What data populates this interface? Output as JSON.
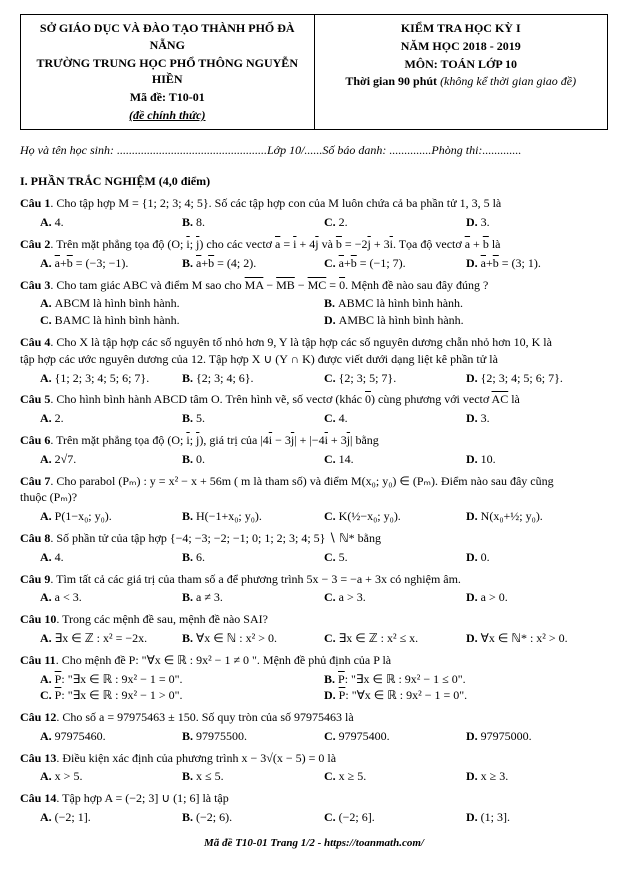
{
  "header": {
    "left": {
      "l1": "SỞ GIÁO DỤC VÀ ĐÀO TẠO THÀNH PHỐ ĐÀ NẴNG",
      "l2": "TRƯỜNG TRUNG HỌC PHỔ THÔNG NGUYỄN HIỀN",
      "code_label": "Mã đề: ",
      "code": "T10-01",
      "official": "(đề chính thức)"
    },
    "right": {
      "r1": "KIỂM TRA HỌC KỲ I",
      "r2": "NĂM HỌC 2018 - 2019",
      "r3": "MÔN: TOÁN LỚP 10",
      "time_label": "Thời gian 90 phút ",
      "time_note": "(không kể thời gian giao đề)"
    }
  },
  "fill": {
    "name_label": "Họ và tên học sinh: ",
    "class_label": "Lớp 10/",
    "id_label": "Số báo danh: ",
    "room_label": "Phòng thi:"
  },
  "section1": "I. PHẦN TRẮC NGHIỆM (4,0 điểm)",
  "q1": {
    "text": ". Cho tập hợp M = {1; 2; 3; 4; 5}. Số các tập hợp con của M luôn chứa cả ba phần tử 1, 3, 5 là",
    "a": "4.",
    "b": "8.",
    "c": "2.",
    "d": "3."
  },
  "q2": {
    "text_before": ". Trên mặt phẳng tọa độ (O; ",
    "text_mid": ") cho các vectơ ",
    "eq1": " và ",
    "eq2": ". Tọa độ vectơ ",
    "eq3": " là",
    "a": " = (−3; −1).",
    "b": " = (4; 2).",
    "c": " = (−1; 7).",
    "d": " = (3; 1)."
  },
  "q3": {
    "text": ". Cho tam giác ABC và điểm M sao cho ",
    "eq": " = ",
    "after": ". Mệnh đề nào sau đây đúng ?",
    "a": "ABCM là hình bình hành.",
    "b": "ABMC là hình bình hành.",
    "c": "BAMC là hình bình hành.",
    "d": "AMBC là hình bình hành."
  },
  "q4": {
    "l1": ". Cho X là tập hợp các số nguyên tố nhỏ hơn 9, Y là tập hợp các số nguyên dương chẵn nhỏ hơn 10, K là",
    "l2": "tập hợp các ước nguyên dương của 12. Tập hợp X ∪ (Y ∩ K) được viết dưới dạng liệt kê phần tử là",
    "a": "{1; 2; 3; 4; 5; 6; 7}.",
    "b": "{2; 3; 4; 6}.",
    "c": "{2; 3; 5; 7}.",
    "d": "{2; 3; 4; 5; 6; 7}."
  },
  "q5": {
    "text": ". Cho hình bình hành ABCD tâm O. Trên hình vẽ, số vectơ (khác ",
    "after": ") cùng phương với vectơ ",
    "after2": " là",
    "a": "2.",
    "b": "5.",
    "c": "4.",
    "d": "3."
  },
  "q6": {
    "text": ". Trên mặt phẳng tọa độ (O; ",
    "mid": "), giá trị của ",
    "after": " bằng",
    "a": "2√7.",
    "b": "0.",
    "c": "14.",
    "d": "10."
  },
  "q7": {
    "l1": ". Cho parabol (Pₘ) : y = x² − x + 56m ( m là tham số) và điểm M(x₀; y₀) ∈ (Pₘ). Điểm nào sau đây cũng",
    "l2": "thuộc (Pₘ)?",
    "a": "P(1−x₀; y₀).",
    "b": "H(−1+x₀; y₀).",
    "c_pre": "K(",
    "c_frac": "½",
    "c_post": "−x₀; y₀).",
    "d_pre": "N(x₀+",
    "d_frac": "½",
    "d_post": "; y₀)."
  },
  "q8": {
    "text": ". Số phần tử của tập hợp {−4; −3; −2; −1; 0; 1; 2; 3; 4; 5} ∖ ℕ* bằng",
    "a": "4.",
    "b": "6.",
    "c": "5.",
    "d": "0."
  },
  "q9": {
    "text": ". Tìm tất cả các giá trị của tham số a để phương trình 5x − 3 = −a + 3x có nghiệm âm.",
    "a": "a < 3.",
    "b": "a ≠ 3.",
    "c": "a > 3.",
    "d": "a > 0."
  },
  "q10": {
    "text": ". Trong các mệnh đề sau, mệnh đề nào SAI?",
    "a": "∃x ∈ ℤ : x² = −2x.",
    "b": "∀x ∈ ℕ : x² > 0.",
    "c": "∃x ∈ ℤ : x² ≤ x.",
    "d": "∀x ∈ ℕ* : x² > 0."
  },
  "q11": {
    "text": ". Cho mệnh đề P: \"∀x ∈ ℝ : 9x² − 1 ≠ 0 \". Mệnh đề phủ định của P là",
    "a": ": \"∃x ∈ ℝ : 9x² − 1 = 0\".",
    "b": ": \"∃x ∈ ℝ : 9x² − 1 ≤ 0\".",
    "c": ": \"∃x ∈ ℝ : 9x² − 1 > 0\".",
    "d": ": \"∀x ∈ ℝ : 9x² − 1 = 0\"."
  },
  "q12": {
    "text": ". Cho số a = 97975463 ± 150. Số quy tròn của số 97975463 là",
    "a": "97975460.",
    "b": "97975500.",
    "c": "97975400.",
    "d": "97975000."
  },
  "q13": {
    "text": ". Điều kiện xác định của phương trình x − 3√(x − 5) = 0 là",
    "a": "x > 5.",
    "b": "x ≤ 5.",
    "c": "x ≥ 5.",
    "d": "x ≥ 3."
  },
  "q14": {
    "text": ". Tập hợp A = (−2; 3] ∪ (1; 6] là tập",
    "a": "(−2; 1].",
    "b": "(−2; 6).",
    "c": "(−2; 6].",
    "d": "(1; 3]."
  },
  "labels": {
    "a": "A. ",
    "b": "B. ",
    "c": "C. ",
    "d": "D. ",
    "cau": "Câu "
  },
  "footer": "Mã đề T10-01 Trang 1/2 - https://toanmath.com/"
}
